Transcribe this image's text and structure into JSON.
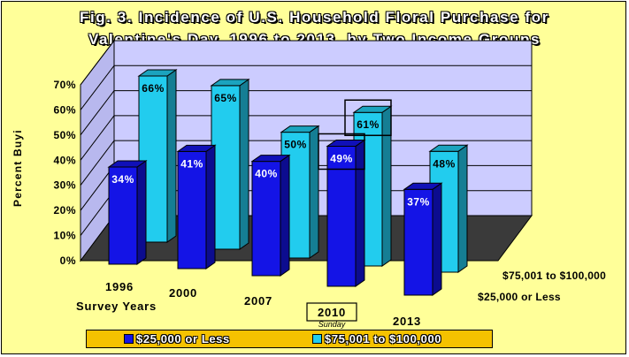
{
  "title_line1": "Fig. 3.  Incidence of U.S. Household Floral Purchase for",
  "title_line2": "Valentine's Day, 1996 to 2013, by Two Income Groups",
  "chart_data": {
    "type": "bar",
    "projection": "3d",
    "ylabel": "Percent Buyi",
    "xlabel": "Survey Years",
    "ylim": [
      0,
      70
    ],
    "yticks": [
      "0%",
      "10%",
      "20%",
      "30%",
      "40%",
      "50%",
      "60%",
      "70%"
    ],
    "categories": [
      "1996",
      "2000",
      "2007",
      "2010",
      "2013"
    ],
    "category_annotation": {
      "category": "2010",
      "text": "Sunday"
    },
    "series": [
      {
        "name": "$25,000 or Less",
        "color": "#1414e6",
        "values": [
          34,
          41,
          40,
          49,
          37
        ],
        "labels": [
          "34%",
          "41%",
          "40%",
          "49%",
          "37%"
        ]
      },
      {
        "name": "$75,001 to $100,000",
        "color": "#22ccee",
        "values": [
          66,
          65,
          50,
          61,
          48
        ],
        "labels": [
          "66%",
          "65%",
          "50%",
          "61%",
          "48%"
        ]
      }
    ],
    "depth_labels": [
      "$25,000 or Less",
      "$75,001 to $100,000"
    ],
    "highlighted": [
      {
        "series": "$25,000 or Less",
        "category": "2010"
      },
      {
        "series": "$75,001 to $100,000",
        "category": "2010"
      }
    ],
    "grid": true,
    "legend": "bottom"
  },
  "legend": [
    {
      "label": "$25,000 or Less",
      "color": "#1414e6"
    },
    {
      "label": "$75,001 to $100,000",
      "color": "#22ccee"
    }
  ]
}
